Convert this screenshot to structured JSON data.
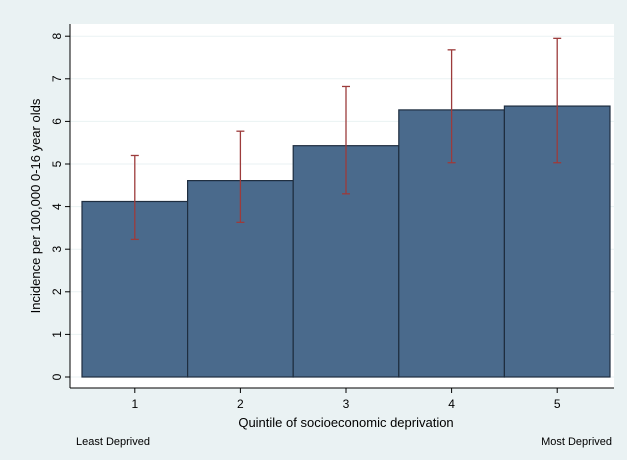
{
  "chart_data": {
    "type": "bar",
    "categories": [
      "1",
      "2",
      "3",
      "4",
      "5"
    ],
    "values": [
      4.12,
      4.61,
      5.43,
      6.27,
      6.36
    ],
    "error_low": [
      3.23,
      3.63,
      4.3,
      5.03,
      5.03
    ],
    "error_high": [
      5.2,
      5.77,
      6.82,
      7.68,
      7.95
    ],
    "xlabel": "Quintile of socioeconomic deprivation",
    "ylabel": "Incidence per 100,000 0-16 year olds",
    "yticks": [
      "0",
      "1",
      "2",
      "3",
      "4",
      "5",
      "6",
      "7",
      "8"
    ],
    "ylim": [
      0,
      8.2
    ],
    "annotations": {
      "left": "Least Deprived",
      "right": "Most Deprived"
    },
    "grid": true,
    "legend": "none",
    "colors": {
      "background": "#eaf2f3",
      "plot_background": "#ffffff",
      "grid": "#eaf2f3",
      "bar_fill": "#4a6a8c",
      "bar_stroke": "#1e2d3f",
      "error_bar": "#9c3b3b"
    }
  }
}
